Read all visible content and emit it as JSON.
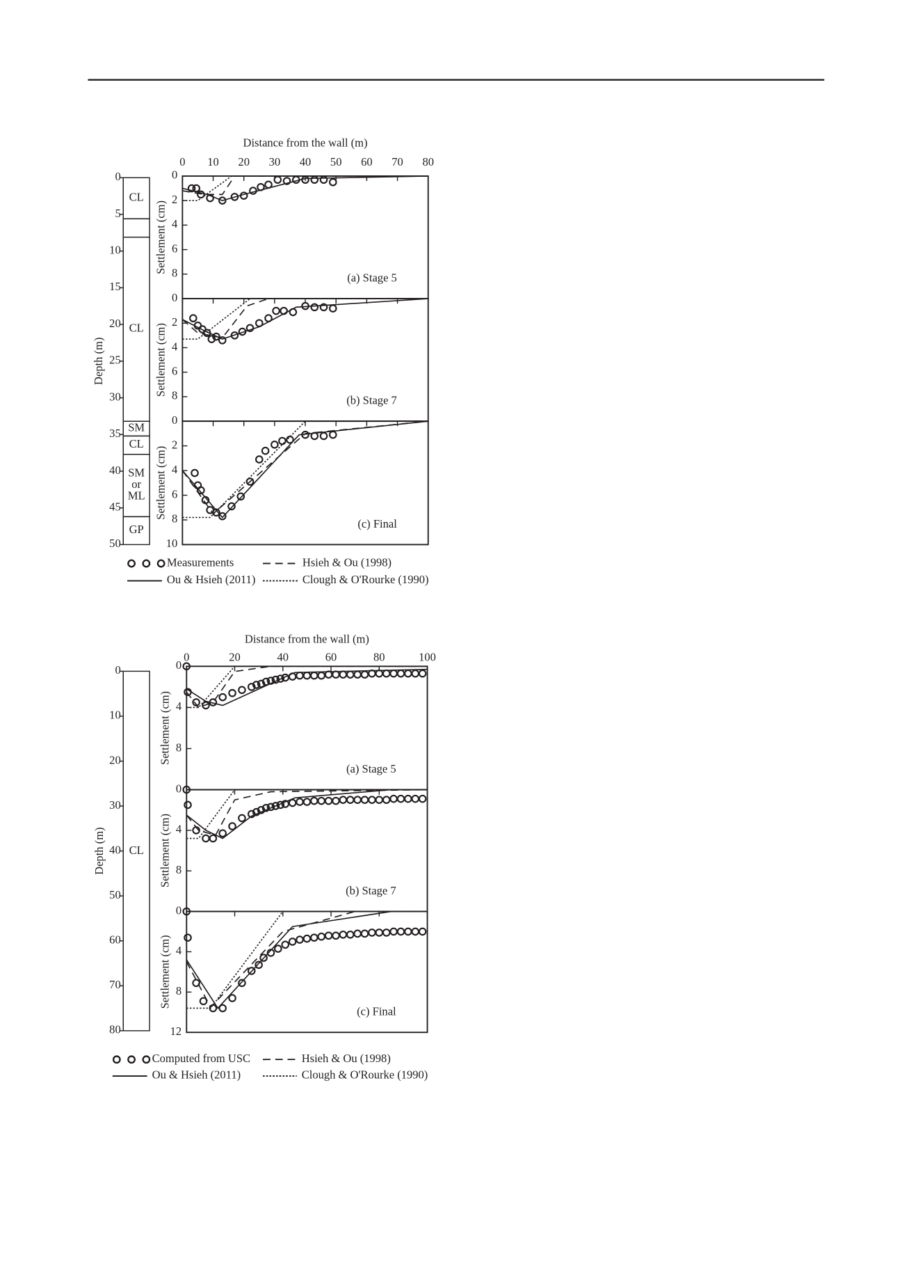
{
  "chart_data": [
    {
      "type": "line",
      "x_label": "Distance from the wall (m)",
      "y_label": "Settlement (cm)",
      "xlim": [
        0,
        80
      ],
      "xticks": [
        0,
        10,
        20,
        30,
        40,
        50,
        60,
        70,
        80
      ],
      "panels": [
        {
          "annotation": "(a) Stage 5",
          "ylim": [
            0,
            10
          ],
          "yticks": [
            0,
            2,
            4,
            6,
            8
          ]
        },
        {
          "annotation": "(b) Stage 7",
          "ylim": [
            0,
            10
          ],
          "yticks": [
            0,
            2,
            4,
            6,
            8
          ]
        },
        {
          "annotation": "(c) Final",
          "ylim": [
            0,
            10
          ],
          "yticks": [
            0,
            2,
            4,
            6,
            8,
            10
          ]
        }
      ],
      "series": [
        {
          "name": "Measurements",
          "color": "#231f20",
          "style": "markers",
          "x": [
            [
              3,
              4.5,
              6,
              9,
              13,
              17,
              20,
              23,
              25.5,
              28,
              31,
              34,
              37,
              40,
              43,
              46,
              49
            ],
            [
              3.5,
              5,
              6.5,
              8,
              9.5,
              11,
              13,
              17,
              19.5,
              22,
              25,
              28,
              30.5,
              33,
              36,
              40,
              43,
              46,
              49
            ],
            [
              4,
              5,
              6,
              7.5,
              9,
              11,
              13,
              16,
              19,
              22,
              25,
              27,
              30,
              32.5,
              35,
              40,
              43,
              46,
              49
            ]
          ],
          "values": [
            [
              1,
              1,
              1.5,
              1.8,
              2,
              1.7,
              1.6,
              1.2,
              0.9,
              0.7,
              0.3,
              0.4,
              0.3,
              0.3,
              0.3,
              0.3,
              0.5
            ],
            [
              1.6,
              2.2,
              2.5,
              2.8,
              3.3,
              3.1,
              3.4,
              3,
              2.7,
              2.4,
              2,
              1.6,
              1,
              1,
              1.1,
              0.6,
              0.7,
              0.7,
              0.8
            ],
            [
              4.2,
              5.2,
              5.6,
              6.4,
              7.2,
              7.4,
              7.7,
              6.9,
              6.1,
              4.9,
              3.1,
              2.4,
              1.9,
              1.6,
              1.5,
              1.1,
              1.2,
              1.2,
              1.1
            ]
          ]
        },
        {
          "name": "Ou & Hsieh (2011)",
          "color": "#231f20",
          "style": "solid",
          "x": [
            [
              0,
              8,
              13,
              20,
              40,
              80
            ],
            [
              0,
              7,
              13,
              25,
              37,
              80
            ],
            [
              0,
              13,
              38,
              80
            ]
          ],
          "values": [
            [
              1,
              1.5,
              2,
              1.5,
              0.2,
              0
            ],
            [
              1.7,
              2.6,
              3.3,
              2.3,
              0.7,
              0
            ],
            [
              4,
              7.8,
              1.1,
              0
            ]
          ]
        },
        {
          "name": "Hsieh & Ou (1998)",
          "color": "#231f20",
          "style": "dashed",
          "x": [
            [
              0,
              7,
              13,
              17,
              80
            ],
            [
              0,
              5,
              13,
              21,
              28,
              80
            ],
            [
              0,
              10,
              40,
              80
            ]
          ],
          "values": [
            [
              1.2,
              1.5,
              1.5,
              0,
              0
            ],
            [
              1.7,
              2.8,
              3.2,
              0.6,
              0,
              0
            ],
            [
              4,
              7.5,
              1,
              0
            ]
          ]
        },
        {
          "name": "Clough & O'Rourke (1990)",
          "color": "#231f20",
          "style": "dotted",
          "x": [
            [
              0,
              5,
              16,
              80
            ],
            [
              0,
              5,
              22,
              80
            ],
            [
              0,
              9,
              40,
              80
            ]
          ],
          "values": [
            [
              2,
              2,
              0,
              0
            ],
            [
              3.3,
              3.3,
              0,
              0
            ],
            [
              7.8,
              7.8,
              0,
              0
            ]
          ]
        }
      ],
      "soil": {
        "y_label": "Depth (m)",
        "ylim": [
          0,
          50
        ],
        "yticks": [
          0,
          5,
          10,
          15,
          20,
          25,
          30,
          35,
          40,
          45,
          50
        ],
        "layers": [
          {
            "label": "CL",
            "top": 0,
            "bottom": 5.6
          },
          {
            "label": null,
            "top": 5.6,
            "bottom": 8.1
          },
          {
            "label": "CL",
            "top": 8.1,
            "bottom": 33.2
          },
          {
            "label": "SM",
            "top": 33.2,
            "bottom": 35.2
          },
          {
            "label": "CL",
            "top": 35.2,
            "bottom": 37.7
          },
          {
            "label": "SM or ML",
            "top": 37.7,
            "bottom": 46.2
          },
          {
            "label": "GP",
            "top": 46.2,
            "bottom": 50
          }
        ]
      }
    },
    {
      "type": "line",
      "x_label": "Distance from the wall (m)",
      "y_label": "Settlement (cm)",
      "xlim": [
        0,
        100
      ],
      "xticks": [
        0,
        20,
        40,
        60,
        80,
        100
      ],
      "panels": [
        {
          "annotation": "(a) Stage 5",
          "ylim": [
            0,
            12
          ],
          "yticks": [
            0,
            4,
            8
          ]
        },
        {
          "annotation": "(b) Stage 7",
          "ylim": [
            0,
            12
          ],
          "yticks": [
            0,
            4,
            8
          ]
        },
        {
          "annotation": "(c) Final",
          "ylim": [
            0,
            12
          ],
          "yticks": [
            0,
            4,
            8,
            12
          ]
        }
      ],
      "series": [
        {
          "name": "Computed from USC",
          "color": "#231f20",
          "style": "markers",
          "x": [
            [
              0,
              0.5,
              4,
              8,
              11,
              15,
              19,
              23,
              27,
              29,
              31,
              33,
              35,
              37,
              39,
              41,
              44,
              47,
              50,
              53,
              56,
              59,
              62,
              65,
              68,
              71,
              74,
              77,
              80,
              83,
              86,
              89,
              92,
              95,
              98
            ],
            [
              0,
              0.5,
              4,
              8,
              11,
              15,
              19,
              23,
              27,
              29,
              31,
              33,
              35,
              37,
              39,
              41,
              44,
              47,
              50,
              53,
              56,
              59,
              62,
              65,
              68,
              71,
              74,
              77,
              80,
              83,
              86,
              89,
              92,
              95,
              98
            ],
            [
              0,
              0.5,
              4,
              7,
              11,
              15,
              19,
              23,
              27,
              30,
              32,
              35,
              38,
              41,
              44,
              47,
              50,
              53,
              56,
              59,
              62,
              65,
              68,
              71,
              74,
              77,
              80,
              83,
              86,
              89,
              92,
              95,
              98
            ]
          ],
          "values": [
            [
              0,
              2.5,
              3.5,
              3.8,
              3.5,
              3,
              2.6,
              2.3,
              2,
              1.8,
              1.7,
              1.5,
              1.4,
              1.3,
              1.2,
              1.1,
              1.0,
              0.9,
              0.9,
              0.9,
              0.9,
              0.8,
              0.8,
              0.8,
              0.8,
              0.8,
              0.8,
              0.7,
              0.7,
              0.7,
              0.7,
              0.7,
              0.7,
              0.7,
              0.7
            ],
            [
              0,
              1.5,
              4,
              4.8,
              4.8,
              4.3,
              3.6,
              2.8,
              2.4,
              2.2,
              2.0,
              1.8,
              1.7,
              1.6,
              1.5,
              1.4,
              1.3,
              1.2,
              1.2,
              1.1,
              1.1,
              1.1,
              1.1,
              1.0,
              1.0,
              1.0,
              1.0,
              1.0,
              1.0,
              1.0,
              0.9,
              0.9,
              0.9,
              0.9,
              0.9
            ],
            [
              0,
              2.6,
              7.1,
              8.9,
              9.6,
              9.6,
              8.6,
              7.1,
              5.9,
              5.3,
              4.6,
              4.1,
              3.7,
              3.3,
              3.0,
              2.8,
              2.7,
              2.6,
              2.5,
              2.4,
              2.4,
              2.3,
              2.3,
              2.2,
              2.2,
              2.1,
              2.1,
              2.1,
              2.0,
              2.0,
              2.0,
              2.0,
              2.0
            ]
          ]
        },
        {
          "name": "Ou & Hsieh (2011)",
          "color": "#231f20",
          "style": "solid",
          "x": [
            [
              0,
              8,
              15,
              30,
              45,
              100
            ],
            [
              0,
              8,
              15,
              27,
              45,
              85,
              100
            ],
            [
              0,
              13,
              44,
              85,
              100
            ]
          ],
          "values": [
            [
              2.2,
              3.4,
              3.8,
              2.2,
              0.6,
              0.3
            ],
            [
              2.5,
              4,
              4.8,
              2.6,
              0.8,
              0,
              0
            ],
            [
              4.8,
              9.6,
              1.5,
              0,
              0
            ]
          ]
        },
        {
          "name": "Hsieh & Ou (1998)",
          "color": "#231f20",
          "style": "dashed",
          "x": [
            [
              0,
              5,
              11,
              20,
              35,
              100
            ],
            [
              0,
              5,
              12,
              20,
              35,
              100
            ],
            [
              0,
              10,
              40,
              70,
              100
            ]
          ],
          "values": [
            [
              2.5,
              4,
              3.5,
              0.5,
              0,
              0
            ],
            [
              2.5,
              4,
              4.5,
              1,
              0.2,
              0
            ],
            [
              5,
              9.5,
              2,
              0,
              0
            ]
          ]
        },
        {
          "name": "Clough & O'Rourke (1990)",
          "color": "#231f20",
          "style": "dotted",
          "x": [
            [
              0,
              5,
              20,
              100
            ],
            [
              0,
              5,
              20,
              100
            ],
            [
              0,
              10,
              40,
              100
            ]
          ],
          "values": [
            [
              4,
              4,
              0,
              0
            ],
            [
              4.8,
              4.8,
              0,
              0
            ],
            [
              9.6,
              9.6,
              0,
              0
            ]
          ]
        }
      ],
      "soil": {
        "y_label": "Depth (m)",
        "ylim": [
          0,
          80
        ],
        "yticks": [
          0,
          10,
          20,
          30,
          40,
          50,
          60,
          70,
          80
        ],
        "layers": [
          {
            "label": "CL",
            "top": 0,
            "bottom": 80
          }
        ]
      }
    }
  ]
}
